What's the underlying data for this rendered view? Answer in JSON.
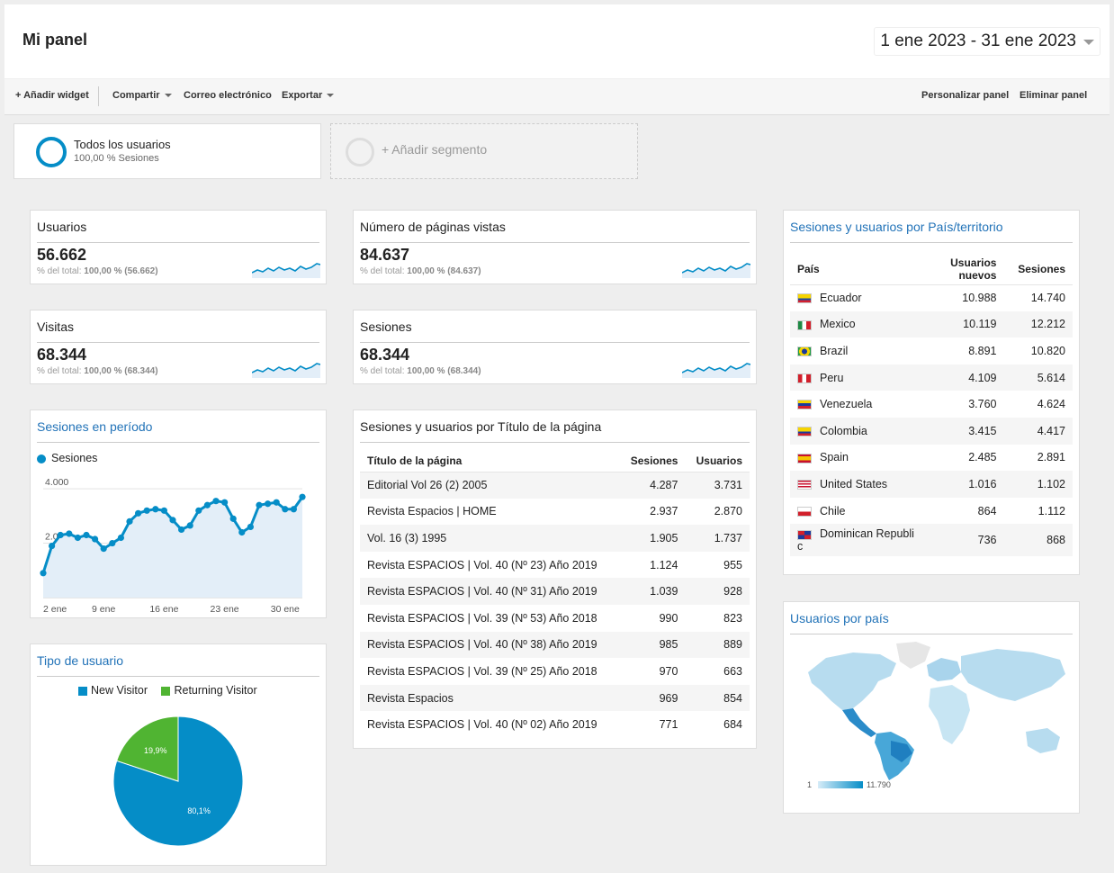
{
  "header": {
    "title": "Mi panel",
    "date_range": "1 ene 2023 - 31 ene 2023"
  },
  "toolbar": {
    "add_widget": "+ Añadir widget",
    "share": "Compartir",
    "email": "Correo electrónico",
    "export": "Exportar",
    "customize": "Personalizar panel",
    "delete": "Eliminar panel"
  },
  "segments": {
    "active_name": "Todos los usuarios",
    "active_sub": "100,00 % Sesiones",
    "add_label": "+ Añadir segmento"
  },
  "metrics": [
    {
      "title": "Usuarios",
      "value": "56.662",
      "sub_prefix": "% del total:",
      "sub_bold": "100,00 % (56.662)"
    },
    {
      "title": "Número de páginas vistas",
      "value": "84.637",
      "sub_prefix": "% del total:",
      "sub_bold": "100,00 % (84.637)"
    },
    {
      "title": "Visitas",
      "value": "68.344",
      "sub_prefix": "% del total:",
      "sub_bold": "100,00 % (68.344)"
    },
    {
      "title": "Sesiones",
      "value": "68.344",
      "sub_prefix": "% del total:",
      "sub_bold": "100,00 % (68.344)"
    }
  ],
  "sessions_chart": {
    "title": "Sesiones en período",
    "legend": "Sesiones",
    "color": "#058dc7"
  },
  "usertype_chart": {
    "title": "Tipo de usuario",
    "new_label": "New Visitor",
    "returning_label": "Returning Visitor",
    "new_color": "#058dc7",
    "returning_color": "#50b432"
  },
  "pages_table": {
    "title": "Sesiones y usuarios por Título de la página",
    "col_page": "Título de la página",
    "col_sessions": "Sesiones",
    "col_users": "Usuarios",
    "rows": [
      {
        "page": "Editorial Vol 26 (2) 2005",
        "sessions": "4.287",
        "users": "3.731"
      },
      {
        "page": "Revista Espacios | HOME",
        "sessions": "2.937",
        "users": "2.870"
      },
      {
        "page": "Vol. 16 (3) 1995",
        "sessions": "1.905",
        "users": "1.737"
      },
      {
        "page": "Revista ESPACIOS | Vol. 40 (Nº 23) Año 2019",
        "sessions": "1.124",
        "users": "955"
      },
      {
        "page": "Revista ESPACIOS | Vol. 40 (Nº 31) Año 2019",
        "sessions": "1.039",
        "users": "928"
      },
      {
        "page": "Revista ESPACIOS | Vol. 39 (Nº 53) Año 2018",
        "sessions": "990",
        "users": "823"
      },
      {
        "page": "Revista ESPACIOS | Vol. 40 (Nº 38) Año 2019",
        "sessions": "985",
        "users": "889"
      },
      {
        "page": "Revista ESPACIOS | Vol. 39 (Nº 25) Año 2018",
        "sessions": "970",
        "users": "663"
      },
      {
        "page": "Revista Espacios",
        "sessions": "969",
        "users": "854"
      },
      {
        "page": "Revista ESPACIOS | Vol. 40 (Nº 02) Año 2019",
        "sessions": "771",
        "users": "684"
      }
    ]
  },
  "country_table": {
    "title": "Sesiones y usuarios por País/territorio",
    "col_country": "País",
    "col_new_users_1": "Usuarios",
    "col_new_users_2": "nuevos",
    "col_sessions": "Sesiones",
    "rows": [
      {
        "country": "Ecuador",
        "new_users": "10.988",
        "sessions": "14.740",
        "flag": "ecuador-flag-icon"
      },
      {
        "country": "Mexico",
        "new_users": "10.119",
        "sessions": "12.212",
        "flag": "mexico-flag-icon"
      },
      {
        "country": "Brazil",
        "new_users": "8.891",
        "sessions": "10.820",
        "flag": "brazil-flag-icon"
      },
      {
        "country": "Peru",
        "new_users": "4.109",
        "sessions": "5.614",
        "flag": "peru-flag-icon"
      },
      {
        "country": "Venezuela",
        "new_users": "3.760",
        "sessions": "4.624",
        "flag": "venezuela-flag-icon"
      },
      {
        "country": "Colombia",
        "new_users": "3.415",
        "sessions": "4.417",
        "flag": "colombia-flag-icon"
      },
      {
        "country": "Spain",
        "new_users": "2.485",
        "sessions": "2.891",
        "flag": "spain-flag-icon"
      },
      {
        "country": "United States",
        "new_users": "1.016",
        "sessions": "1.102",
        "flag": "united-states-flag-icon"
      },
      {
        "country": "Chile",
        "new_users": "864",
        "sessions": "1.112",
        "flag": "chile-flag-icon"
      },
      {
        "country": "Dominican Republi",
        "country_wrap": "c",
        "new_users": "736",
        "sessions": "868",
        "flag": "dominican-republic-flag-icon"
      }
    ]
  },
  "map_widget": {
    "title": "Usuarios por país",
    "scale_min": "1",
    "scale_max": "11.790"
  },
  "chart_data": [
    {
      "type": "line",
      "series": [
        {
          "name": "Sesiones",
          "values": [
            900,
            1900,
            2300,
            2350,
            2200,
            2300,
            2150,
            1800,
            2000,
            2200,
            2800,
            3100,
            3200,
            3250,
            3200,
            2850,
            2500,
            2650,
            3200,
            3400,
            3550,
            3500,
            2900,
            2400,
            2600,
            3400,
            3450,
            3500,
            3250,
            3250,
            3700
          ]
        }
      ],
      "x": [
        "2 ene",
        "3 ene",
        "4 ene",
        "5 ene",
        "6 ene",
        "7 ene",
        "8 ene",
        "9 ene",
        "10 ene",
        "11 ene",
        "12 ene",
        "13 ene",
        "14 ene",
        "15 ene",
        "16 ene",
        "17 ene",
        "18 ene",
        "19 ene",
        "20 ene",
        "21 ene",
        "22 ene",
        "23 ene",
        "24 ene",
        "25 ene",
        "26 ene",
        "27 ene",
        "28 ene",
        "29 ene",
        "30 ene",
        "31 ene",
        "1 feb"
      ],
      "x_tick_labels": [
        "2 ene",
        "9 ene",
        "16 ene",
        "23 ene",
        "30 ene"
      ],
      "y_tick_labels": [
        "4.000",
        "2.000"
      ],
      "ylim": [
        0,
        4500
      ]
    },
    {
      "type": "pie",
      "categories": [
        "New Visitor",
        "Returning Visitor"
      ],
      "values": [
        80.1,
        19.9
      ],
      "data_labels": [
        "80,1%",
        "19,9%"
      ]
    }
  ]
}
